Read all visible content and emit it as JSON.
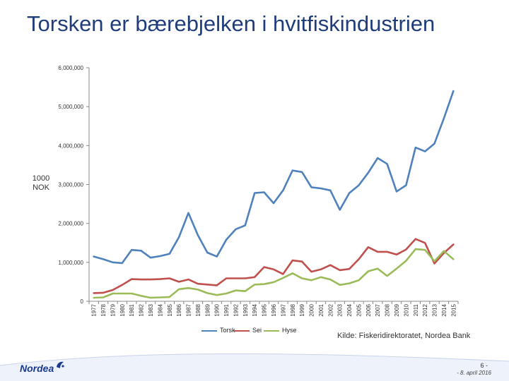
{
  "slide": {
    "title": "Torsken er bærebjelken i hvitfiskindustrien",
    "source": "Kilde: Fiskeridirektoratet, Nordea Bank",
    "logo": "Nordea",
    "page_number": "6 -",
    "date": "- 8. april 2016"
  },
  "chart_data": {
    "type": "line",
    "ylabel": "1000 NOK",
    "ylim": [
      0,
      6000000
    ],
    "yticks": [
      0,
      1000000,
      2000000,
      3000000,
      4000000,
      5000000,
      6000000
    ],
    "ytick_labels": [
      "0",
      "1,000,000",
      "2,000,000",
      "3,000,000",
      "4,000,000",
      "5,000,000",
      "6,000,000"
    ],
    "grid": false,
    "legend_position": "bottom",
    "categories": [
      "1977",
      "1978",
      "1979",
      "1980",
      "1981",
      "1982",
      "1983",
      "1984",
      "1985",
      "1986",
      "1987",
      "1988",
      "1989",
      "1990",
      "1991",
      "1992",
      "1993",
      "1994",
      "1995",
      "1996",
      "1997",
      "1998",
      "1999",
      "2000",
      "2001",
      "2002",
      "2003",
      "2004",
      "2005",
      "2006",
      "2007",
      "2008",
      "2009",
      "2010",
      "2011",
      "2012",
      "2013",
      "2014",
      "2015"
    ],
    "series": [
      {
        "name": "Torsk",
        "color": "#4f81bd",
        "values": [
          1150000,
          1080000,
          1000000,
          980000,
          1320000,
          1300000,
          1120000,
          1160000,
          1220000,
          1650000,
          2270000,
          1700000,
          1250000,
          1150000,
          1580000,
          1850000,
          1950000,
          2780000,
          2800000,
          2520000,
          2850000,
          3360000,
          3320000,
          2930000,
          2900000,
          2850000,
          2350000,
          2780000,
          2980000,
          3300000,
          3680000,
          3530000,
          2820000,
          2980000,
          3950000,
          3850000,
          4050000,
          4700000,
          5400000
        ]
      },
      {
        "name": "Sei",
        "color": "#c0504d",
        "values": [
          210000,
          220000,
          290000,
          420000,
          570000,
          560000,
          560000,
          570000,
          590000,
          500000,
          560000,
          450000,
          430000,
          410000,
          590000,
          590000,
          590000,
          620000,
          880000,
          820000,
          700000,
          1050000,
          1020000,
          760000,
          820000,
          930000,
          800000,
          830000,
          1080000,
          1390000,
          1270000,
          1270000,
          1200000,
          1330000,
          1600000,
          1500000,
          970000,
          1240000,
          1460000
        ]
      },
      {
        "name": "Hyse",
        "color": "#9bbb59",
        "values": [
          90000,
          100000,
          200000,
          200000,
          200000,
          140000,
          90000,
          100000,
          110000,
          310000,
          340000,
          300000,
          210000,
          160000,
          200000,
          280000,
          260000,
          430000,
          440000,
          490000,
          600000,
          720000,
          590000,
          540000,
          620000,
          560000,
          420000,
          460000,
          540000,
          770000,
          840000,
          650000,
          840000,
          1040000,
          1340000,
          1320000,
          1030000,
          1290000,
          1080000
        ]
      }
    ]
  }
}
